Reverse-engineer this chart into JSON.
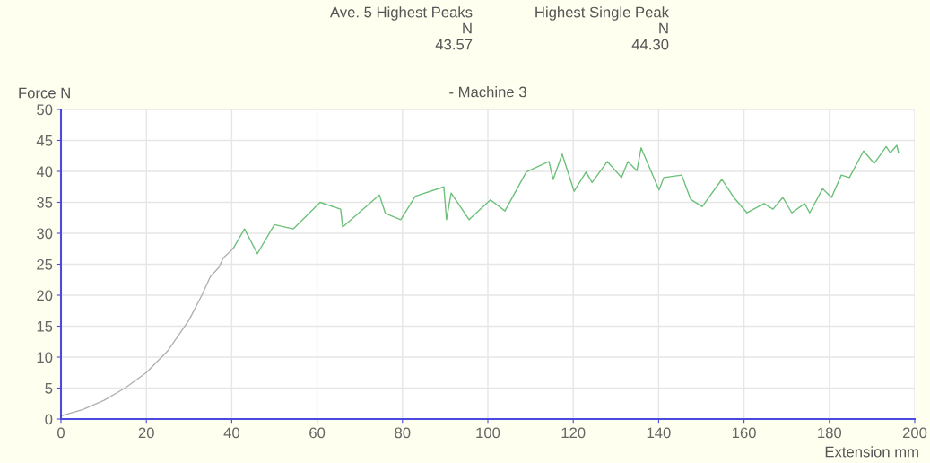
{
  "chart_data": {
    "type": "line",
    "title": "- Machine 3",
    "xlabel": "Extension mm",
    "ylabel": "Force N",
    "annotations": [
      "Ave. 5 Highest Peaks",
      "N",
      "43.57",
      "Highest Single Peak",
      "N",
      "44.30"
    ],
    "series": [
      {
        "color": "#b0b0b0",
        "x": [
          0,
          5,
          10,
          15,
          20,
          25,
          30,
          33,
          35,
          37,
          38,
          40.3
        ],
        "values": [
          0.5,
          1.5,
          3,
          5,
          7.5,
          11,
          16,
          20,
          23,
          24.5,
          26,
          27.5
        ]
      },
      {
        "color": "#6cc07a",
        "x": [
          40.3,
          43,
          46,
          50,
          54.4,
          60.7,
          65.5,
          66,
          74.6,
          76,
          79.6,
          83,
          89.7,
          90.3,
          91.4,
          95.6,
          100.6,
          104,
          109,
          114.3,
          115.3,
          117.4,
          120.2,
          123,
          124.4,
          128,
          131.3,
          132.8,
          134.9,
          135.9,
          140.1,
          141.2,
          145.4,
          147.5,
          150.2,
          154.8,
          157.6,
          160.7,
          164.7,
          166.8,
          169.1,
          171.2,
          174.2,
          175.4,
          178.4,
          180.5,
          182.8,
          184.7,
          188,
          190.5,
          193.3,
          194.3,
          195.8,
          196.2
        ],
        "values": [
          27.5,
          30.7,
          26.7,
          31.4,
          30.7,
          35,
          33.9,
          31,
          36.2,
          33.2,
          32.2,
          36,
          37.5,
          32.2,
          36.5,
          32.2,
          35.4,
          33.6,
          39.9,
          41.6,
          38.7,
          42.8,
          36.8,
          39.9,
          38.2,
          41.6,
          39,
          41.6,
          40.1,
          43.8,
          37,
          39,
          39.4,
          35.5,
          34.3,
          38.7,
          35.8,
          33.3,
          34.8,
          33.9,
          35.8,
          33.3,
          34.8,
          33.3,
          37.2,
          35.8,
          39.4,
          39,
          43.3,
          41.3,
          44,
          43,
          44.2,
          43
        ]
      }
    ],
    "xlim": [
      0,
      200
    ],
    "ylim": [
      0,
      50
    ],
    "xticks": [
      0,
      20,
      40,
      60,
      80,
      100,
      120,
      140,
      160,
      180,
      200
    ],
    "yticks": [
      0,
      5,
      10,
      15,
      20,
      25,
      30,
      35,
      40,
      45,
      50
    ],
    "grid": true,
    "legend": false,
    "marker": "none",
    "line_style": "solid"
  }
}
